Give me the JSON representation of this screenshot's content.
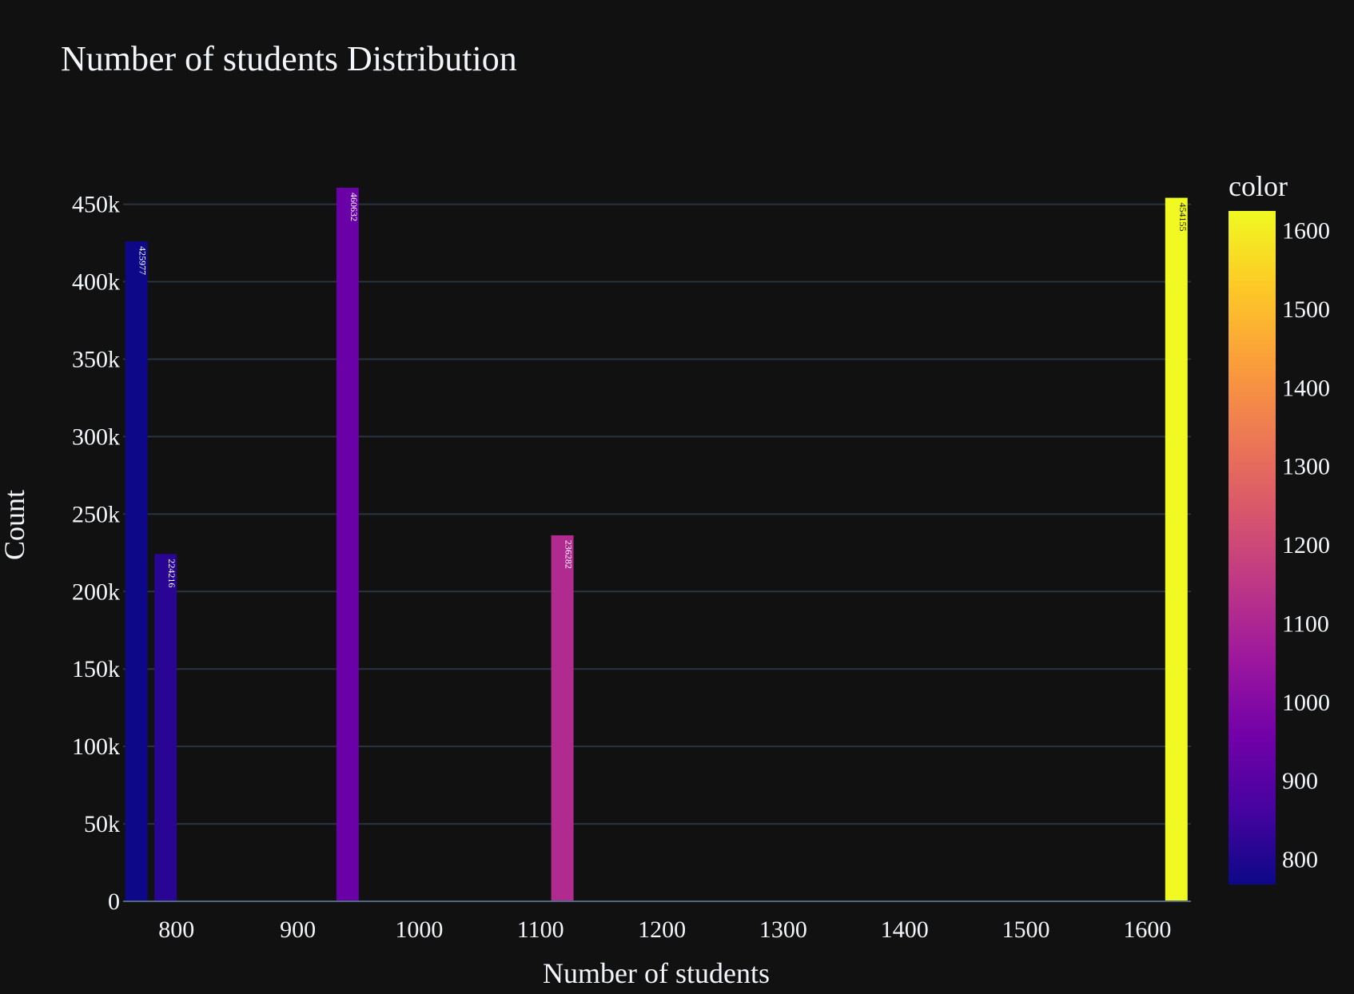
{
  "chart_data": {
    "type": "bar",
    "title": "Number of students Distribution",
    "xlabel": "Number of students",
    "ylabel": "Count",
    "xlim": [
      756,
      1636
    ],
    "ylim": [
      0,
      460632
    ],
    "x_ticks": [
      800,
      900,
      1000,
      1100,
      1200,
      1300,
      1400,
      1500,
      1600
    ],
    "x_tick_labels": [
      "800",
      "900",
      "1000",
      "1100",
      "1200",
      "1300",
      "1400",
      "1500",
      "1600"
    ],
    "y_ticks": [
      0,
      50000,
      100000,
      150000,
      200000,
      250000,
      300000,
      350000,
      400000,
      450000
    ],
    "y_tick_labels": [
      "0",
      "50k",
      "100k",
      "150k",
      "200k",
      "250k",
      "300k",
      "350k",
      "400k",
      "450k"
    ],
    "bars": [
      {
        "x": 767,
        "value": 425977,
        "label": "425977",
        "color": "#0d0887"
      },
      {
        "x": 791,
        "value": 224216,
        "label": "224216",
        "color": "#2a0593"
      },
      {
        "x": 941,
        "value": 460632,
        "label": "460632",
        "color": "#6a00a8"
      },
      {
        "x": 1118,
        "value": 236282,
        "label": "236282",
        "color": "#b12a90"
      },
      {
        "x": 1624,
        "value": 454155,
        "label": "454155",
        "color": "#f0f921"
      }
    ],
    "colorbar": {
      "title": "color",
      "range": [
        767,
        1624
      ],
      "ticks": [
        800,
        900,
        1000,
        1100,
        1200,
        1300,
        1400,
        1500,
        1600
      ],
      "tick_labels": [
        "800",
        "900",
        "1000",
        "1100",
        "1200",
        "1300",
        "1400",
        "1500",
        "1600"
      ],
      "colorscale": [
        "#0d0887",
        "#46039f",
        "#7201a8",
        "#9c179e",
        "#bd3786",
        "#d8576b",
        "#ed7953",
        "#fb9f3a",
        "#fdca26",
        "#f0f921"
      ]
    },
    "grid": true,
    "legend": "none",
    "background": "#111111",
    "grid_color": "#283442"
  }
}
